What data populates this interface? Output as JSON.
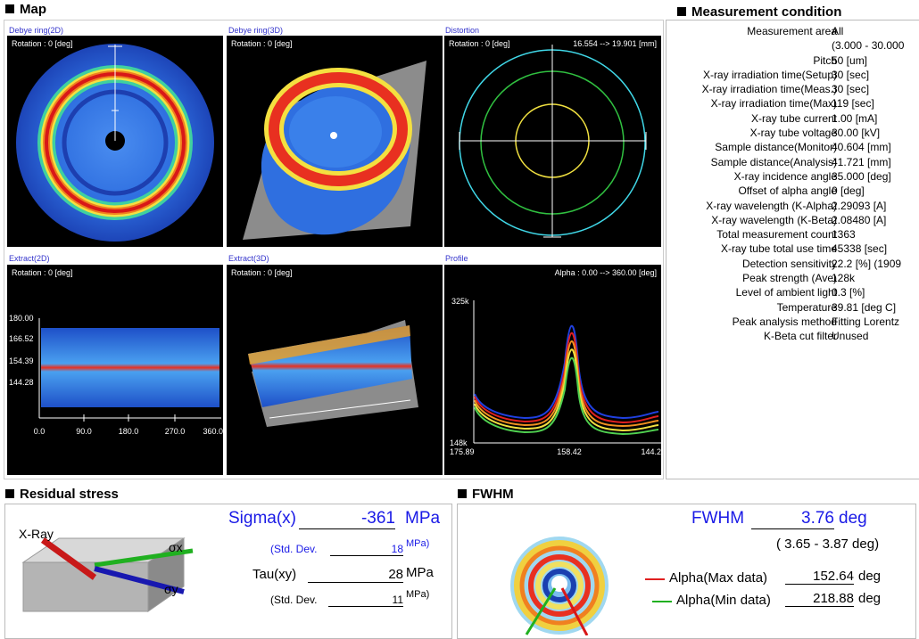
{
  "map": {
    "title": "Map",
    "panels": [
      {
        "title": "Debye ring(2D)",
        "rotation": "Rotation : 0 [deg]"
      },
      {
        "title": "Debye ring(3D)",
        "rotation": "Rotation : 0 [deg]"
      },
      {
        "title": "Distortion",
        "rotation": "Rotation : 0 [deg]",
        "range": "16.554 --> 19.901 [mm]"
      },
      {
        "title": "Extract(2D)",
        "rotation": "Rotation : 0 [deg]",
        "y_labels": [
          "180.00",
          "166.52",
          "154.39",
          "144.28"
        ],
        "x_labels": [
          "0.0",
          "90.0",
          "180.0",
          "270.0",
          "360.0"
        ]
      },
      {
        "title": "Extract(3D)",
        "rotation": "Rotation : 0 [deg]"
      },
      {
        "title": "Profile",
        "range": "Alpha : 0.00 --> 360.00 [deg]",
        "y_labels": [
          "325k",
          "148k"
        ],
        "x_labels": [
          "175.89",
          "158.42",
          "144.2"
        ]
      }
    ]
  },
  "measurement_condition": {
    "title": "Measurement condition",
    "rows": [
      {
        "label": "Measurement area",
        "value": "All"
      },
      {
        "value": "(3.000 - 30.000"
      },
      {
        "label": "Pitch",
        "value": "50 [um]"
      },
      {
        "label": "X-ray irradiation time(Setup)",
        "value": "30 [sec]"
      },
      {
        "label": "X-ray irradiation time(Meas.)",
        "value": "30 [sec]"
      },
      {
        "label": "X-ray irradiation time(Max)",
        "value": "119 [sec]"
      },
      {
        "label": "X-ray tube current",
        "value": "1.00 [mA]"
      },
      {
        "label": "X-ray tube voltage",
        "value": "30.00 [kV]"
      },
      {
        "label": "Sample distance(Monitor)",
        "value": "40.604 [mm]"
      },
      {
        "label": "Sample distance(Analysis)",
        "value": "41.721 [mm]"
      },
      {
        "label": "X-ray incidence angle",
        "value": "35.000 [deg]"
      },
      {
        "label": "Offset of alpha angle",
        "value": "0 [deg]"
      },
      {
        "label": "X-ray wavelength (K-Alpha)",
        "value": "2.29093 [A]"
      },
      {
        "label": "X-ray wavelength (K-Beta)",
        "value": "2.08480 [A]"
      },
      {
        "label": "Total measurement count",
        "value": "1363"
      },
      {
        "label": "X-ray tube total use time",
        "value": "45338 [sec]"
      },
      {
        "label": "Detection sensitivity",
        "value": "22.2 [%] (1909"
      },
      {
        "label": "Peak strength (Ave)",
        "value": "128k"
      },
      {
        "label": "Level of ambient light",
        "value": "0.3 [%]"
      },
      {
        "label": "Temperature",
        "value": "39.81 [deg C]"
      },
      {
        "label": "Peak analysis method",
        "value": "Fitting Lorentz"
      },
      {
        "label": "K-Beta cut filter",
        "value": "Unused"
      }
    ]
  },
  "residual_stress": {
    "title": "Residual stress",
    "xray_label": "X-Ray",
    "sigma_x_label": "σx",
    "sigma_y_label": "σy",
    "sigma_x": {
      "label": "Sigma(x)",
      "value": "-361",
      "unit": "MPa"
    },
    "sigma_x_std": {
      "label": "(Std. Dev.",
      "value": "18",
      "unit": "MPa)"
    },
    "tau_xy": {
      "label": "Tau(xy)",
      "value": "28",
      "unit": "MPa"
    },
    "tau_xy_std": {
      "label": "(Std. Dev.",
      "value": "11",
      "unit": "MPa)"
    }
  },
  "fwhm": {
    "title": "FWHM",
    "fwhm": {
      "label": "FWHM",
      "value": "3.76",
      "unit": "deg"
    },
    "range": "( 3.65 - 3.87 deg)",
    "alpha_max": {
      "label": "Alpha(Max data)",
      "value": "152.64",
      "unit": "deg"
    },
    "alpha_min": {
      "label": "Alpha(Min data)",
      "value": "218.88",
      "unit": "deg"
    }
  }
}
